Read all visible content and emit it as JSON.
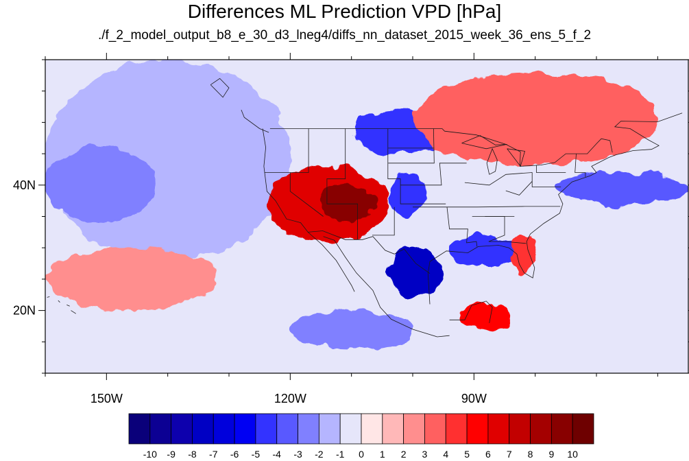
{
  "title": "Differences ML Prediction VPD [hPa]",
  "subtitle": "./f_2_model_output_b8_e_30_d3_lneg4/diffs_nn_dataset_2015_week_36_ens_5_f_2",
  "map": {
    "projection": "lat-lon",
    "lon_range": [
      -160,
      -55
    ],
    "lat_range": [
      10,
      60
    ],
    "x_ticks": [
      {
        "label": "150W",
        "lon": -150
      },
      {
        "label": "120W",
        "lon": -120
      },
      {
        "label": "90W",
        "lon": -90
      }
    ],
    "y_ticks": [
      {
        "label": "40N",
        "lat": 40
      },
      {
        "label": "20N",
        "lat": 20
      }
    ],
    "regions": [
      {
        "desc": "ocean-light-blue",
        "lon": [
          -160,
          -120
        ],
        "lat": [
          28,
          60
        ],
        "value": -1.5
      },
      {
        "desc": "pacific-blue-band",
        "lon": [
          -160,
          -142
        ],
        "lat": [
          34,
          46
        ],
        "value": -2.5
      },
      {
        "desc": "pacific-red-south",
        "lon": [
          -160,
          -132
        ],
        "lat": [
          20,
          30
        ],
        "value": 2.5
      },
      {
        "desc": "southwest-us-red",
        "lon": [
          -124,
          -104
        ],
        "lat": [
          31,
          43
        ],
        "value": 6
      },
      {
        "desc": "four-corners-darkred",
        "lon": [
          -115,
          -106
        ],
        "lat": [
          34,
          40
        ],
        "value": 9
      },
      {
        "desc": "northern-plains-blue",
        "lon": [
          -110,
          -94
        ],
        "lat": [
          45,
          52
        ],
        "value": -4.5
      },
      {
        "desc": "central-plains-blue",
        "lon": [
          -104,
          -98
        ],
        "lat": [
          35,
          42
        ],
        "value": -5
      },
      {
        "desc": "texas-mexico-darkblue",
        "lon": [
          -104,
          -95
        ],
        "lat": [
          22,
          30
        ],
        "value": -7.5
      },
      {
        "desc": "gulf-coast-blue",
        "lon": [
          -94,
          -82
        ],
        "lat": [
          27,
          32
        ],
        "value": -4.5
      },
      {
        "desc": "atlantic-blue",
        "lon": [
          -76,
          -55
        ],
        "lat": [
          37,
          42
        ],
        "value": -4
      },
      {
        "desc": "canada-red",
        "lon": [
          -100,
          -60
        ],
        "lat": [
          43,
          58
        ],
        "value": 3.5
      },
      {
        "desc": "caribbean-red",
        "lon": [
          -92,
          -84
        ],
        "lat": [
          17,
          21
        ],
        "value": 5
      },
      {
        "desc": "florida-red",
        "lon": [
          -84,
          -80
        ],
        "lat": [
          26,
          32
        ],
        "value": 4
      },
      {
        "desc": "tropical-blue",
        "lon": [
          -120,
          -100
        ],
        "lat": [
          14,
          20
        ],
        "value": -2.5
      }
    ]
  },
  "colorbar": {
    "labels": [
      "-10",
      "-9",
      "-8",
      "-7",
      "-6",
      "-5",
      "-4",
      "-3",
      "-2",
      "-1",
      "0",
      "1",
      "2",
      "3",
      "4",
      "5",
      "6",
      "7",
      "8",
      "9",
      "10"
    ],
    "colors": [
      "#0a007a",
      "#0c0093",
      "#0d00ad",
      "#0000c4",
      "#0000dc",
      "#0000f3",
      "#3333ff",
      "#5959ff",
      "#8080ff",
      "#b5b5ff",
      "#e6e6fa",
      "#ffe6e6",
      "#ffb8b8",
      "#ff8e8e",
      "#ff6060",
      "#ff3030",
      "#ff0000",
      "#e00000",
      "#c20000",
      "#a40000",
      "#880000",
      "#6e0000"
    ]
  }
}
